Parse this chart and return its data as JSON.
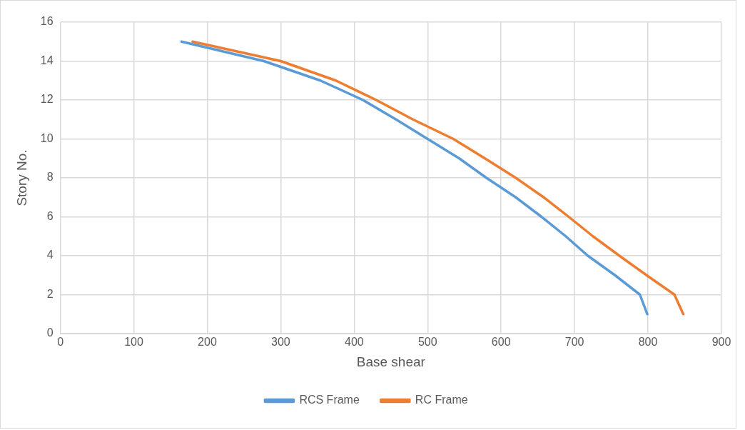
{
  "chart_data": {
    "type": "line",
    "xlabel": "Base shear",
    "ylabel": "Story No.",
    "xlim": [
      0,
      900
    ],
    "xticks": [
      0,
      100,
      200,
      300,
      400,
      500,
      600,
      700,
      800,
      900
    ],
    "ylim": [
      0,
      16
    ],
    "yticks": [
      0,
      2,
      4,
      6,
      8,
      10,
      12,
      14,
      16
    ],
    "grid": true,
    "legend": "bottom",
    "marker": "none",
    "series": [
      {
        "name": "RCS Frame",
        "color": "#5b9bd5",
        "x": [
          799,
          789,
          755,
          718,
          688,
          655,
          620,
          580,
          543,
          500,
          457,
          412,
          354,
          277,
          165
        ],
        "values": [
          1,
          2,
          3,
          4,
          5,
          6,
          7,
          8,
          9,
          10,
          11,
          12,
          13,
          14,
          15
        ]
      },
      {
        "name": "RC Frame",
        "color": "#ed7d31",
        "x": [
          848,
          836,
          798,
          761,
          725,
          692,
          658,
          620,
          578,
          535,
          480,
          430,
          375,
          300,
          180
        ],
        "values": [
          1,
          2,
          3,
          4,
          5,
          6,
          7,
          8,
          9,
          10,
          11,
          12,
          13,
          14,
          15
        ]
      }
    ]
  }
}
